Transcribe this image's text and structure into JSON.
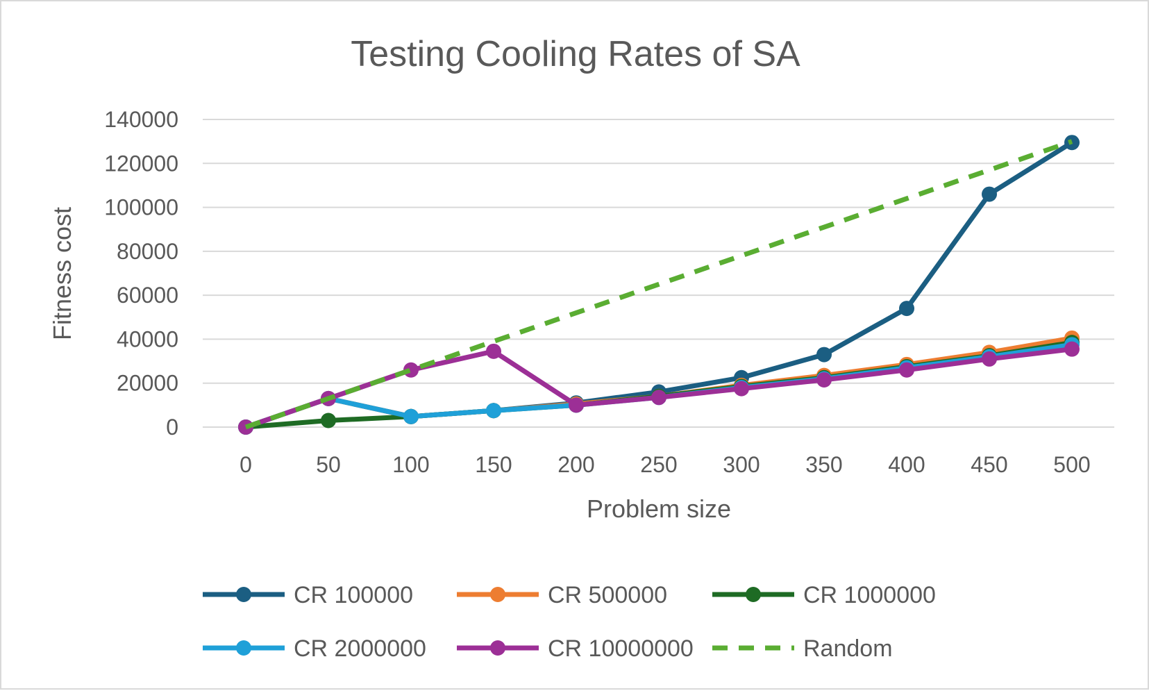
{
  "chart_data": {
    "type": "line",
    "title": "Testing Cooling Rates of SA",
    "xlabel": "Problem size",
    "ylabel": "Fitness cost",
    "x": [
      0,
      50,
      100,
      150,
      200,
      250,
      300,
      350,
      400,
      450,
      500
    ],
    "x_tick_labels": [
      "0",
      "50",
      "100",
      "150",
      "200",
      "250",
      "300",
      "350",
      "400",
      "450",
      "500"
    ],
    "ylim": [
      0,
      140000
    ],
    "y_ticks": [
      0,
      20000,
      40000,
      60000,
      80000,
      100000,
      120000,
      140000
    ],
    "y_tick_labels": [
      "0",
      "20000",
      "40000",
      "60000",
      "80000",
      "100000",
      "120000",
      "140000"
    ],
    "grid": true,
    "legend_position": "bottom",
    "series": [
      {
        "name": "CR 100000",
        "color": "#1b5e82",
        "dashed": false,
        "markers": true,
        "values": [
          0,
          13000,
          4800,
          7500,
          11000,
          16000,
          22500,
          33000,
          54000,
          106000,
          129500
        ]
      },
      {
        "name": "CR 500000",
        "color": "#ed7d31",
        "dashed": false,
        "markers": true,
        "values": [
          0,
          13000,
          4800,
          7500,
          10500,
          14000,
          19000,
          23500,
          28500,
          34000,
          40500
        ]
      },
      {
        "name": "CR 1000000",
        "color": "#1e6b24",
        "dashed": false,
        "markers": true,
        "values": [
          0,
          3000,
          4800,
          7500,
          10000,
          14000,
          18500,
          22500,
          27500,
          32500,
          38500
        ]
      },
      {
        "name": "CR 2000000",
        "color": "#1fa0d8",
        "dashed": false,
        "markers": true,
        "values": [
          0,
          13000,
          4800,
          7500,
          10000,
          13500,
          18000,
          22000,
          27000,
          32000,
          37500
        ]
      },
      {
        "name": "CR 10000000",
        "color": "#9c2f96",
        "dashed": false,
        "markers": true,
        "values": [
          0,
          13000,
          26000,
          34500,
          10000,
          13500,
          17500,
          21500,
          26000,
          31000,
          35500
        ]
      },
      {
        "name": "Random",
        "color": "#5aad32",
        "dashed": true,
        "markers": false,
        "values": [
          0,
          13000,
          26000,
          39000,
          52000,
          65000,
          78000,
          91000,
          104000,
          117000,
          130000
        ]
      }
    ]
  }
}
